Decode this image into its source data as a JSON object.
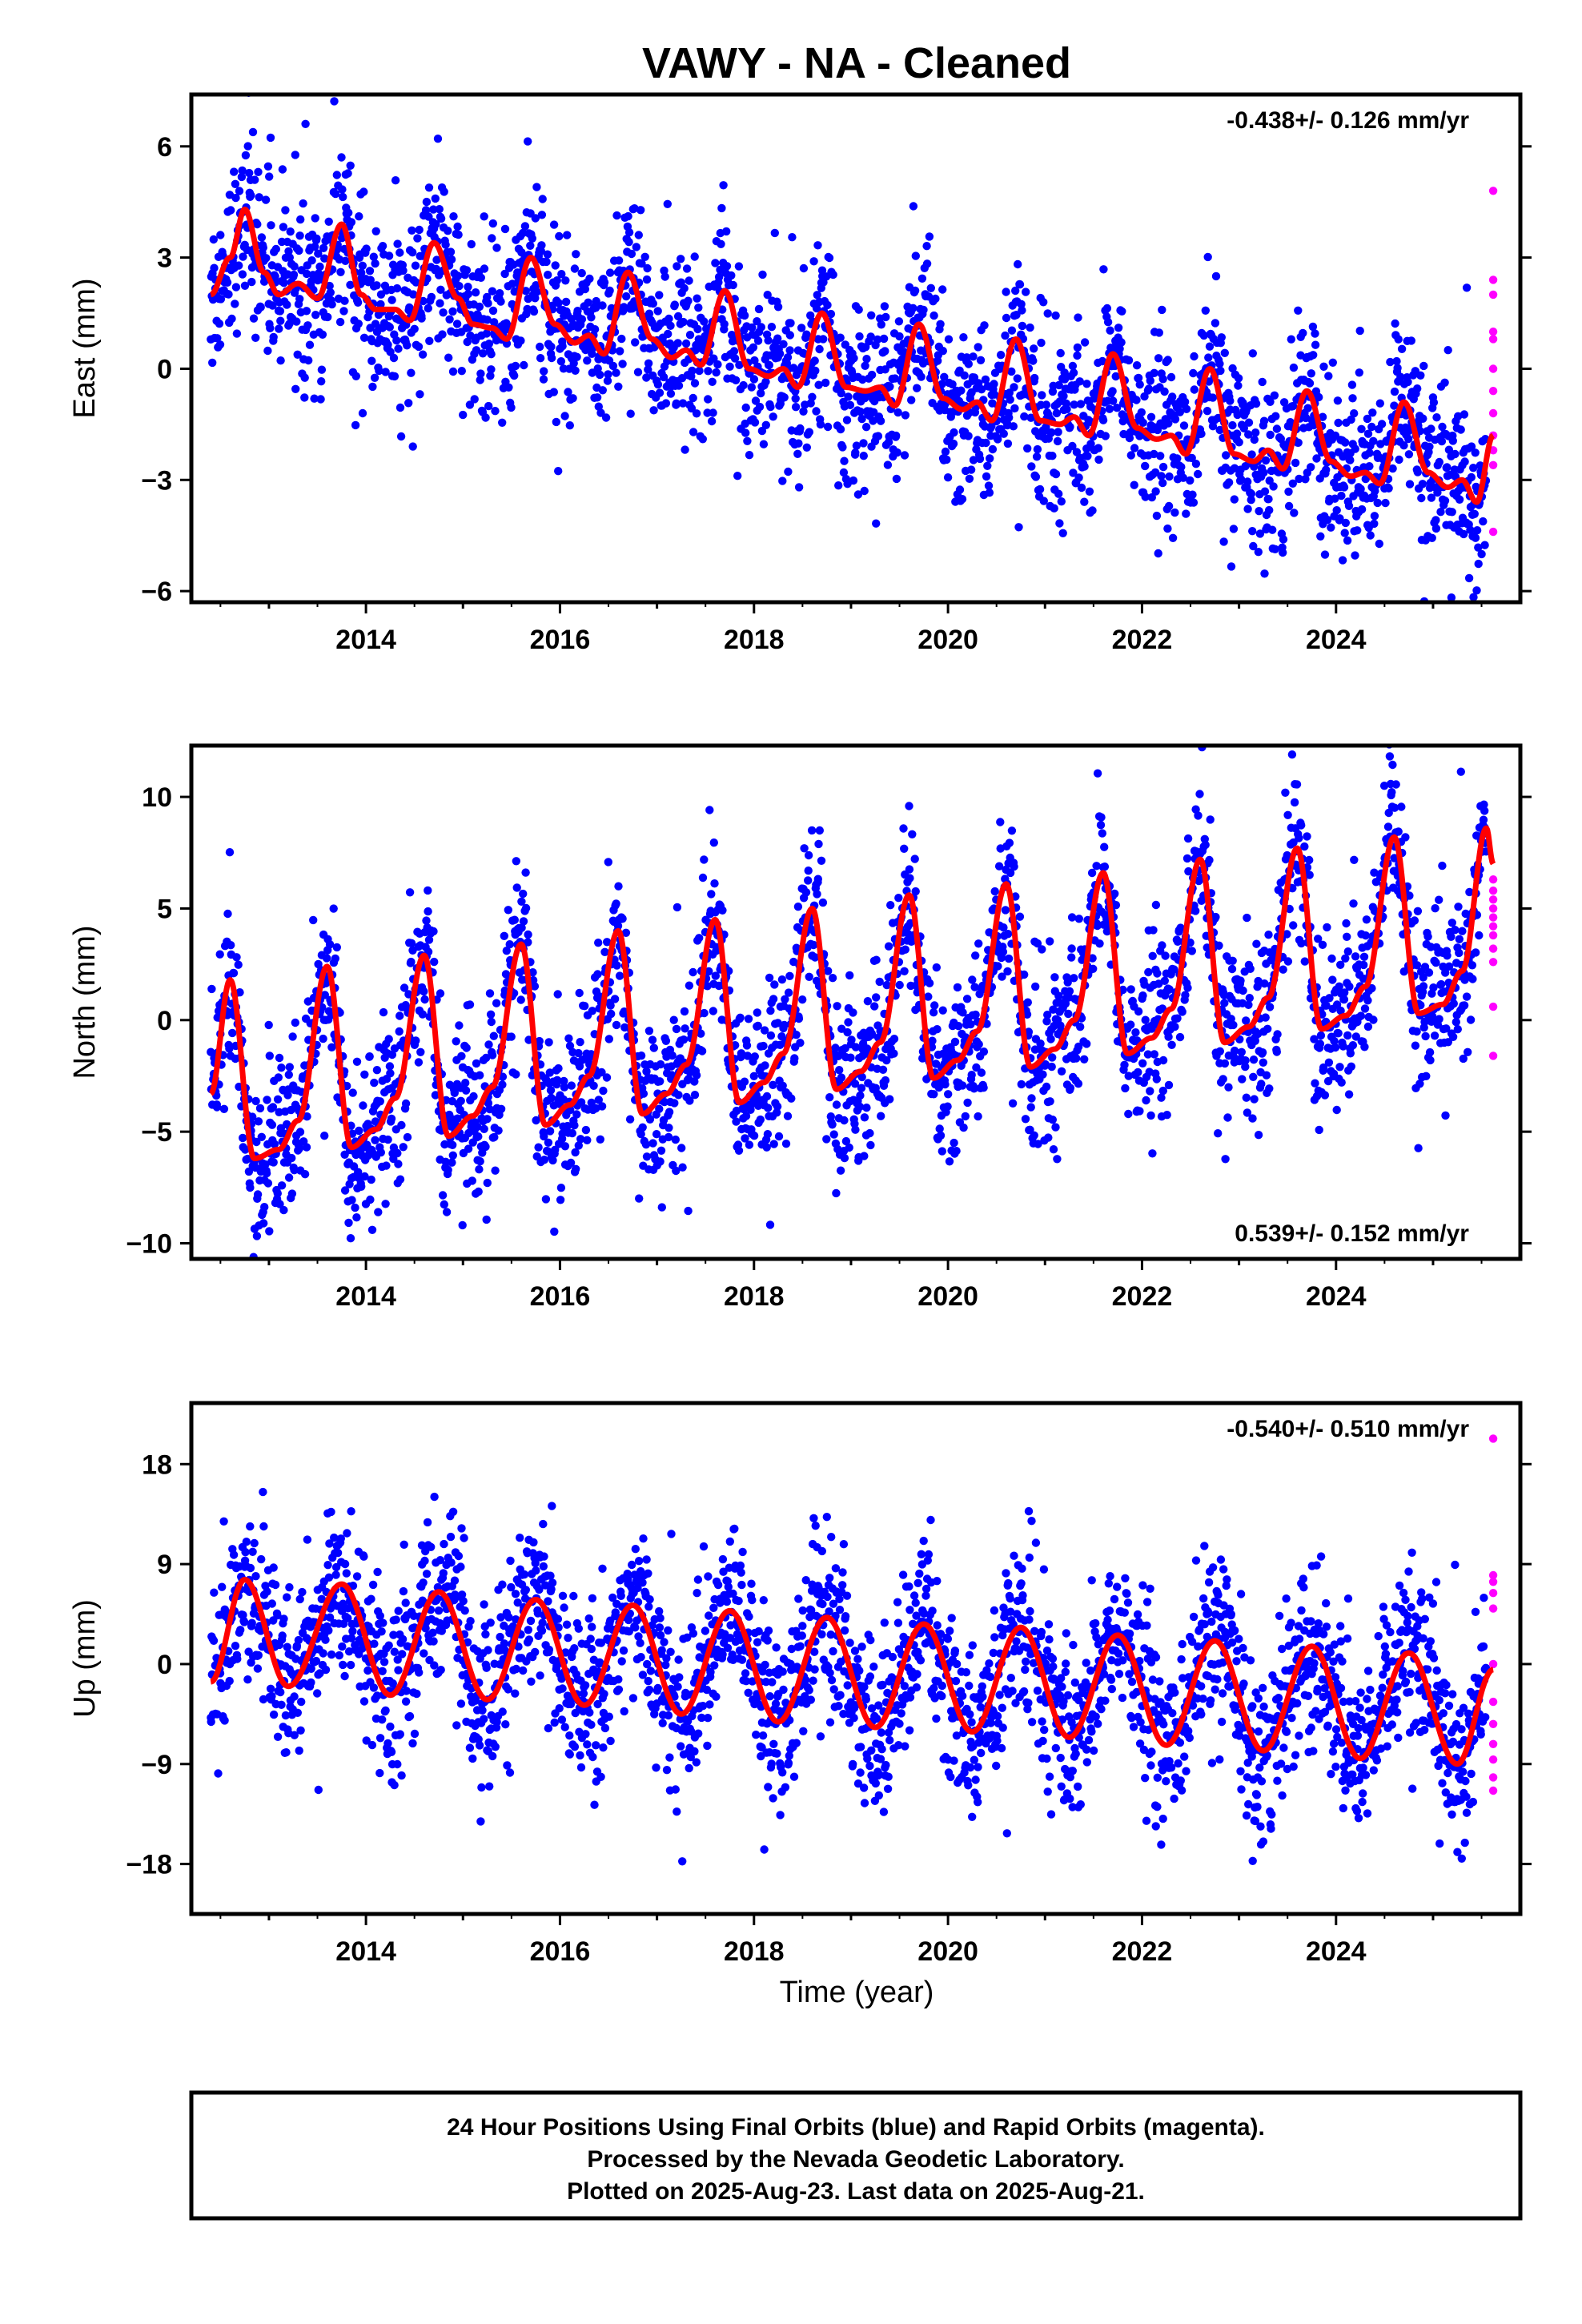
{
  "title": "VAWY  - NA - Cleaned",
  "xlabel": "Time (year)",
  "footer": {
    "line1": "24 Hour Positions Using Final Orbits (blue) and Rapid Orbits (magenta).",
    "line2": "Processed by the Nevada Geodetic Laboratory.",
    "line3": "Plotted on 2025-Aug-23. Last data on 2025-Aug-21."
  },
  "colors": {
    "final": "#0000ff",
    "rapid": "#ff00ff",
    "model": "#ff0000"
  },
  "chart_data": [
    {
      "type": "scatter",
      "name": "east",
      "ylabel": "East (mm)",
      "rate_text": "-0.438+/- 0.126 mm/yr",
      "xlim": [
        2012.2,
        2025.9
      ],
      "ylim": [
        -6.3,
        7.4
      ],
      "xticks": [
        2014,
        2016,
        2018,
        2020,
        2022,
        2024
      ],
      "yticks": [
        -6,
        -3,
        0,
        3,
        6
      ],
      "model_points": [
        [
          2012.4,
          2.0
        ],
        [
          2012.6,
          3.0
        ],
        [
          2012.75,
          4.3
        ],
        [
          2012.95,
          2.6
        ],
        [
          2013.1,
          2.0
        ],
        [
          2013.3,
          2.3
        ],
        [
          2013.5,
          1.9
        ],
        [
          2013.75,
          3.9
        ],
        [
          2013.95,
          2.0
        ],
        [
          2014.1,
          1.6
        ],
        [
          2014.3,
          1.6
        ],
        [
          2014.45,
          1.3
        ],
        [
          2014.7,
          3.4
        ],
        [
          2014.95,
          1.9
        ],
        [
          2015.1,
          1.2
        ],
        [
          2015.3,
          1.1
        ],
        [
          2015.45,
          0.8
        ],
        [
          2015.7,
          3.0
        ],
        [
          2015.95,
          1.2
        ],
        [
          2016.15,
          0.7
        ],
        [
          2016.3,
          0.9
        ],
        [
          2016.45,
          0.4
        ],
        [
          2016.7,
          2.6
        ],
        [
          2016.95,
          0.8
        ],
        [
          2017.15,
          0.3
        ],
        [
          2017.3,
          0.5
        ],
        [
          2017.45,
          0.1
        ],
        [
          2017.7,
          2.1
        ],
        [
          2017.95,
          0.0
        ],
        [
          2018.15,
          -0.2
        ],
        [
          2018.3,
          0.0
        ],
        [
          2018.45,
          -0.5
        ],
        [
          2018.7,
          1.5
        ],
        [
          2018.95,
          -0.5
        ],
        [
          2019.15,
          -0.6
        ],
        [
          2019.3,
          -0.5
        ],
        [
          2019.45,
          -1.0
        ],
        [
          2019.7,
          1.2
        ],
        [
          2019.95,
          -0.8
        ],
        [
          2020.15,
          -1.1
        ],
        [
          2020.3,
          -0.9
        ],
        [
          2020.45,
          -1.4
        ],
        [
          2020.7,
          0.8
        ],
        [
          2020.95,
          -1.4
        ],
        [
          2021.15,
          -1.5
        ],
        [
          2021.3,
          -1.3
        ],
        [
          2021.45,
          -1.8
        ],
        [
          2021.7,
          0.4
        ],
        [
          2021.95,
          -1.6
        ],
        [
          2022.15,
          -1.9
        ],
        [
          2022.3,
          -1.8
        ],
        [
          2022.45,
          -2.3
        ],
        [
          2022.7,
          0.0
        ],
        [
          2022.95,
          -2.3
        ],
        [
          2023.15,
          -2.5
        ],
        [
          2023.3,
          -2.2
        ],
        [
          2023.45,
          -2.7
        ],
        [
          2023.7,
          -0.6
        ],
        [
          2023.95,
          -2.5
        ],
        [
          2024.15,
          -2.9
        ],
        [
          2024.3,
          -2.8
        ],
        [
          2024.45,
          -3.1
        ],
        [
          2024.7,
          -0.9
        ],
        [
          2024.95,
          -2.8
        ],
        [
          2025.15,
          -3.2
        ],
        [
          2025.3,
          -3.0
        ],
        [
          2025.45,
          -3.6
        ],
        [
          2025.62,
          -1.8
        ]
      ],
      "rapid_values": [
        4.8,
        2.4,
        2.0,
        1.0,
        0.8,
        0.0,
        -0.6,
        -1.2,
        -1.8,
        -2.2,
        -2.6,
        -4.4
      ]
    },
    {
      "type": "scatter",
      "name": "north",
      "ylabel": "North (mm)",
      "rate_text": "0.539+/- 0.152 mm/yr",
      "xlim": [
        2012.2,
        2025.9
      ],
      "ylim": [
        -10.7,
        12.3
      ],
      "xticks": [
        2014,
        2016,
        2018,
        2020,
        2022,
        2024
      ],
      "yticks": [
        -10,
        -5,
        0,
        5,
        10
      ],
      "model_points": [
        [
          2012.4,
          -3.3
        ],
        [
          2012.6,
          1.8
        ],
        [
          2012.85,
          -6.2
        ],
        [
          2013.1,
          -5.8
        ],
        [
          2013.3,
          -4.5
        ],
        [
          2013.6,
          2.4
        ],
        [
          2013.85,
          -5.7
        ],
        [
          2014.1,
          -4.9
        ],
        [
          2014.3,
          -3.5
        ],
        [
          2014.6,
          2.9
        ],
        [
          2014.85,
          -5.2
        ],
        [
          2015.1,
          -4.3
        ],
        [
          2015.3,
          -3.0
        ],
        [
          2015.6,
          3.4
        ],
        [
          2015.85,
          -4.7
        ],
        [
          2016.1,
          -3.8
        ],
        [
          2016.3,
          -2.5
        ],
        [
          2016.6,
          4.0
        ],
        [
          2016.85,
          -4.2
        ],
        [
          2017.1,
          -3.3
        ],
        [
          2017.3,
          -2.0
        ],
        [
          2017.6,
          4.5
        ],
        [
          2017.85,
          -3.7
        ],
        [
          2018.1,
          -2.8
        ],
        [
          2018.3,
          -1.5
        ],
        [
          2018.6,
          5.0
        ],
        [
          2018.85,
          -3.1
        ],
        [
          2019.1,
          -2.3
        ],
        [
          2019.3,
          -1.0
        ],
        [
          2019.6,
          5.6
        ],
        [
          2019.85,
          -2.6
        ],
        [
          2020.1,
          -1.8
        ],
        [
          2020.3,
          -0.5
        ],
        [
          2020.6,
          6.1
        ],
        [
          2020.85,
          -2.1
        ],
        [
          2021.1,
          -1.3
        ],
        [
          2021.3,
          0.0
        ],
        [
          2021.6,
          6.6
        ],
        [
          2021.85,
          -1.5
        ],
        [
          2022.1,
          -0.8
        ],
        [
          2022.3,
          0.5
        ],
        [
          2022.6,
          7.2
        ],
        [
          2022.85,
          -1.0
        ],
        [
          2023.1,
          -0.3
        ],
        [
          2023.3,
          1.0
        ],
        [
          2023.6,
          7.7
        ],
        [
          2023.85,
          -0.4
        ],
        [
          2024.1,
          0.2
        ],
        [
          2024.3,
          1.5
        ],
        [
          2024.6,
          8.2
        ],
        [
          2024.85,
          0.3
        ],
        [
          2025.1,
          0.7
        ],
        [
          2025.3,
          2.2
        ],
        [
          2025.55,
          8.6
        ],
        [
          2025.62,
          7.0
        ]
      ],
      "rapid_values": [
        6.3,
        5.8,
        5.4,
        5.0,
        4.6,
        4.2,
        3.8,
        3.2,
        2.6,
        0.6,
        -1.6
      ]
    },
    {
      "type": "scatter",
      "name": "up",
      "ylabel": "Up (mm)",
      "rate_text": "-0.540+/- 0.510 mm/yr",
      "xlim": [
        2012.2,
        2025.9
      ],
      "ylim": [
        -22.5,
        23.5
      ],
      "xticks": [
        2014,
        2016,
        2018,
        2020,
        2022,
        2024
      ],
      "yticks": [
        -18,
        -9,
        0,
        9,
        18
      ],
      "model_points": [
        [
          2012.4,
          -1.6
        ],
        [
          2012.75,
          7.6
        ],
        [
          2013.2,
          -2.0
        ],
        [
          2013.75,
          7.2
        ],
        [
          2014.25,
          -2.8
        ],
        [
          2014.75,
          6.5
        ],
        [
          2015.25,
          -3.2
        ],
        [
          2015.75,
          5.8
        ],
        [
          2016.25,
          -3.7
        ],
        [
          2016.75,
          5.3
        ],
        [
          2017.25,
          -4.5
        ],
        [
          2017.75,
          4.8
        ],
        [
          2018.25,
          -5.2
        ],
        [
          2018.75,
          4.2
        ],
        [
          2019.25,
          -5.7
        ],
        [
          2019.75,
          3.6
        ],
        [
          2020.25,
          -6.1
        ],
        [
          2020.75,
          3.3
        ],
        [
          2021.25,
          -6.6
        ],
        [
          2021.75,
          2.6
        ],
        [
          2022.25,
          -7.3
        ],
        [
          2022.75,
          2.1
        ],
        [
          2023.25,
          -7.8
        ],
        [
          2023.75,
          1.6
        ],
        [
          2024.25,
          -8.5
        ],
        [
          2024.75,
          1.0
        ],
        [
          2025.25,
          -9.0
        ],
        [
          2025.62,
          -0.5
        ]
      ],
      "rapid_values": [
        20.3,
        8.0,
        7.4,
        6.4,
        5.0,
        0.0,
        -3.4,
        -5.4,
        -7.2,
        -8.6,
        -10.2,
        -11.4
      ]
    }
  ]
}
